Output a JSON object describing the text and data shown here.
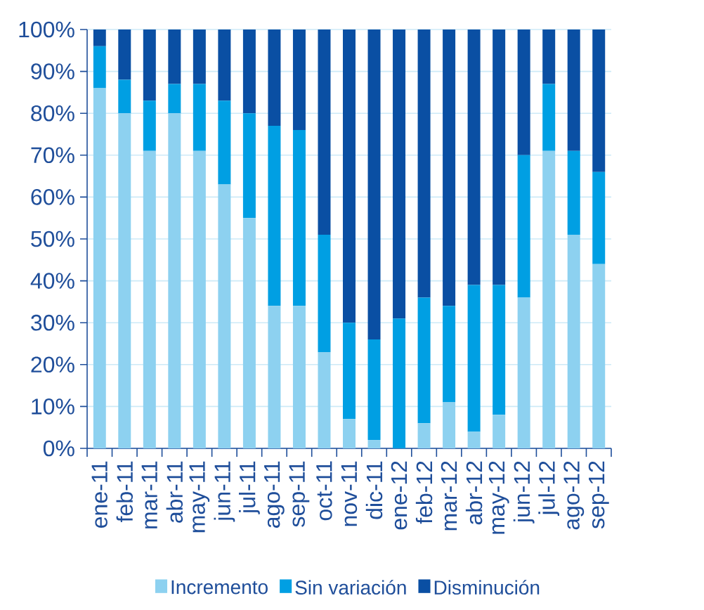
{
  "chart_data": {
    "type": "bar",
    "stacked": true,
    "categories": [
      "ene-11",
      "feb-11",
      "mar-11",
      "abr-11",
      "may-11",
      "jun-11",
      "jul-11",
      "ago-11",
      "sep-11",
      "oct-11",
      "nov-11",
      "dic-11",
      "ene-12",
      "feb-12",
      "mar-12",
      "abr-12",
      "may-12",
      "jun-12",
      "jul-12",
      "ago-12",
      "sep-12"
    ],
    "series": [
      {
        "name": "Incremento",
        "color": "#8dd1f0",
        "values": [
          86,
          80,
          71,
          80,
          71,
          63,
          55,
          34,
          34,
          23,
          7,
          2,
          0,
          6,
          11,
          4,
          8,
          36,
          71,
          51,
          44
        ]
      },
      {
        "name": "Sin variación",
        "color": "#009fe3",
        "values": [
          10,
          8,
          12,
          7,
          16,
          20,
          25,
          43,
          42,
          28,
          23,
          24,
          31,
          30,
          23,
          35,
          31,
          34,
          16,
          20,
          22
        ]
      },
      {
        "name": "Disminución",
        "color": "#0a4fa3",
        "values": [
          4,
          12,
          17,
          13,
          13,
          17,
          20,
          23,
          24,
          49,
          70,
          74,
          69,
          64,
          66,
          61,
          61,
          30,
          13,
          29,
          34
        ]
      }
    ],
    "ylim": [
      0,
      100
    ],
    "yticks": [
      {
        "value": 0,
        "label": "0%"
      },
      {
        "value": 10,
        "label": "10%"
      },
      {
        "value": 20,
        "label": "20%"
      },
      {
        "value": 30,
        "label": "30%"
      },
      {
        "value": 40,
        "label": "40%"
      },
      {
        "value": 50,
        "label": "50%"
      },
      {
        "value": 60,
        "label": "60%"
      },
      {
        "value": 70,
        "label": "70%"
      },
      {
        "value": 80,
        "label": "80%"
      },
      {
        "value": 90,
        "label": "90%"
      },
      {
        "value": 100,
        "label": "100%"
      }
    ],
    "grid": "y",
    "legend": "bottom"
  }
}
